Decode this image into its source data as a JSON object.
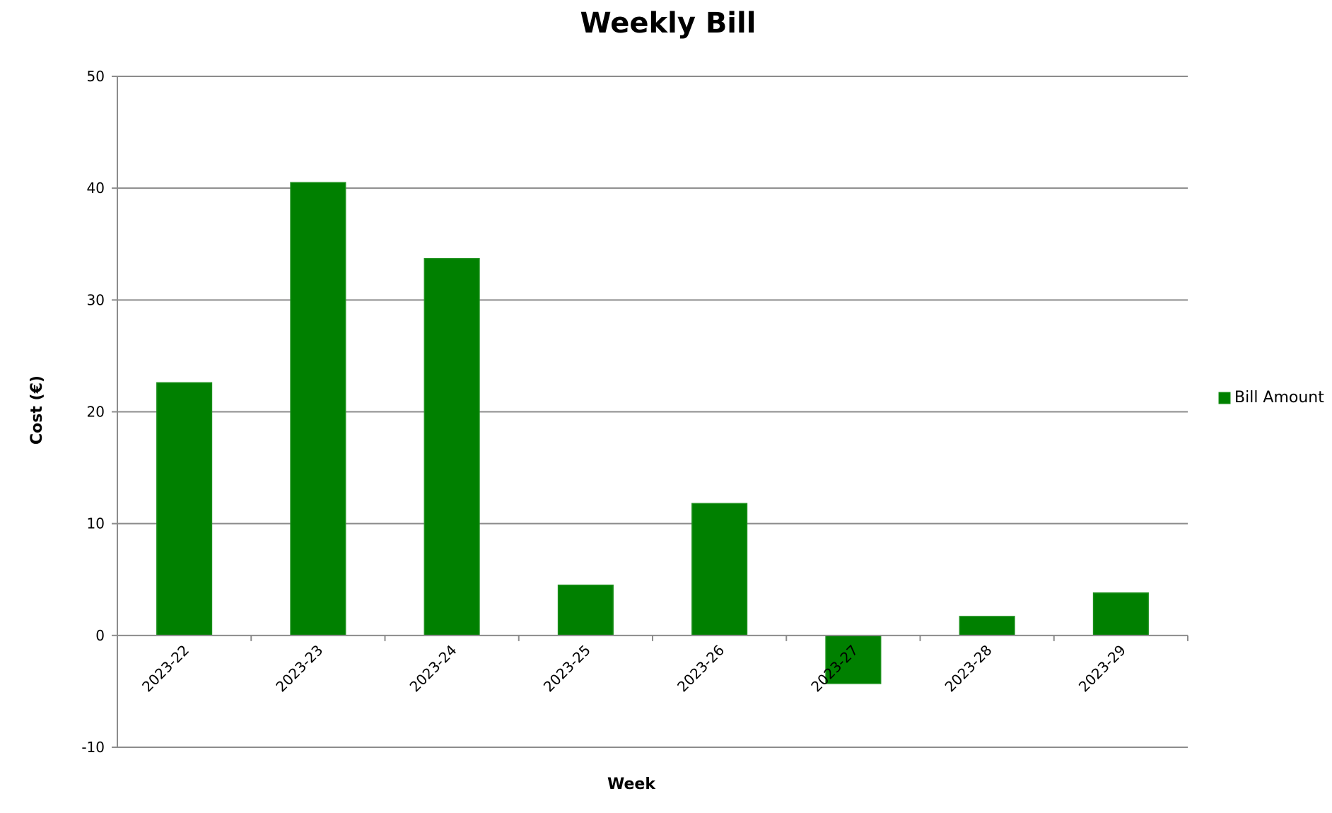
{
  "chart_data": {
    "type": "bar",
    "title": "Weekly Bill",
    "xlabel": "Week",
    "ylabel": "Cost (€)",
    "categories": [
      "2023-22",
      "2023-23",
      "2023-24",
      "2023-25",
      "2023-26",
      "2023-27",
      "2023-28",
      "2023-29"
    ],
    "series": [
      {
        "name": "Bill Amount",
        "values": [
          22.6,
          40.5,
          33.7,
          4.5,
          11.8,
          -4.3,
          1.7,
          3.8
        ],
        "color": "#008000"
      }
    ],
    "ylim": [
      -10,
      50
    ],
    "yticks": [
      -10,
      0,
      10,
      20,
      30,
      40,
      50
    ],
    "ytick_labels": [
      "-10",
      "0",
      "10",
      "20",
      "30",
      "40",
      "50"
    ],
    "grid": true,
    "legend_position": "right"
  }
}
